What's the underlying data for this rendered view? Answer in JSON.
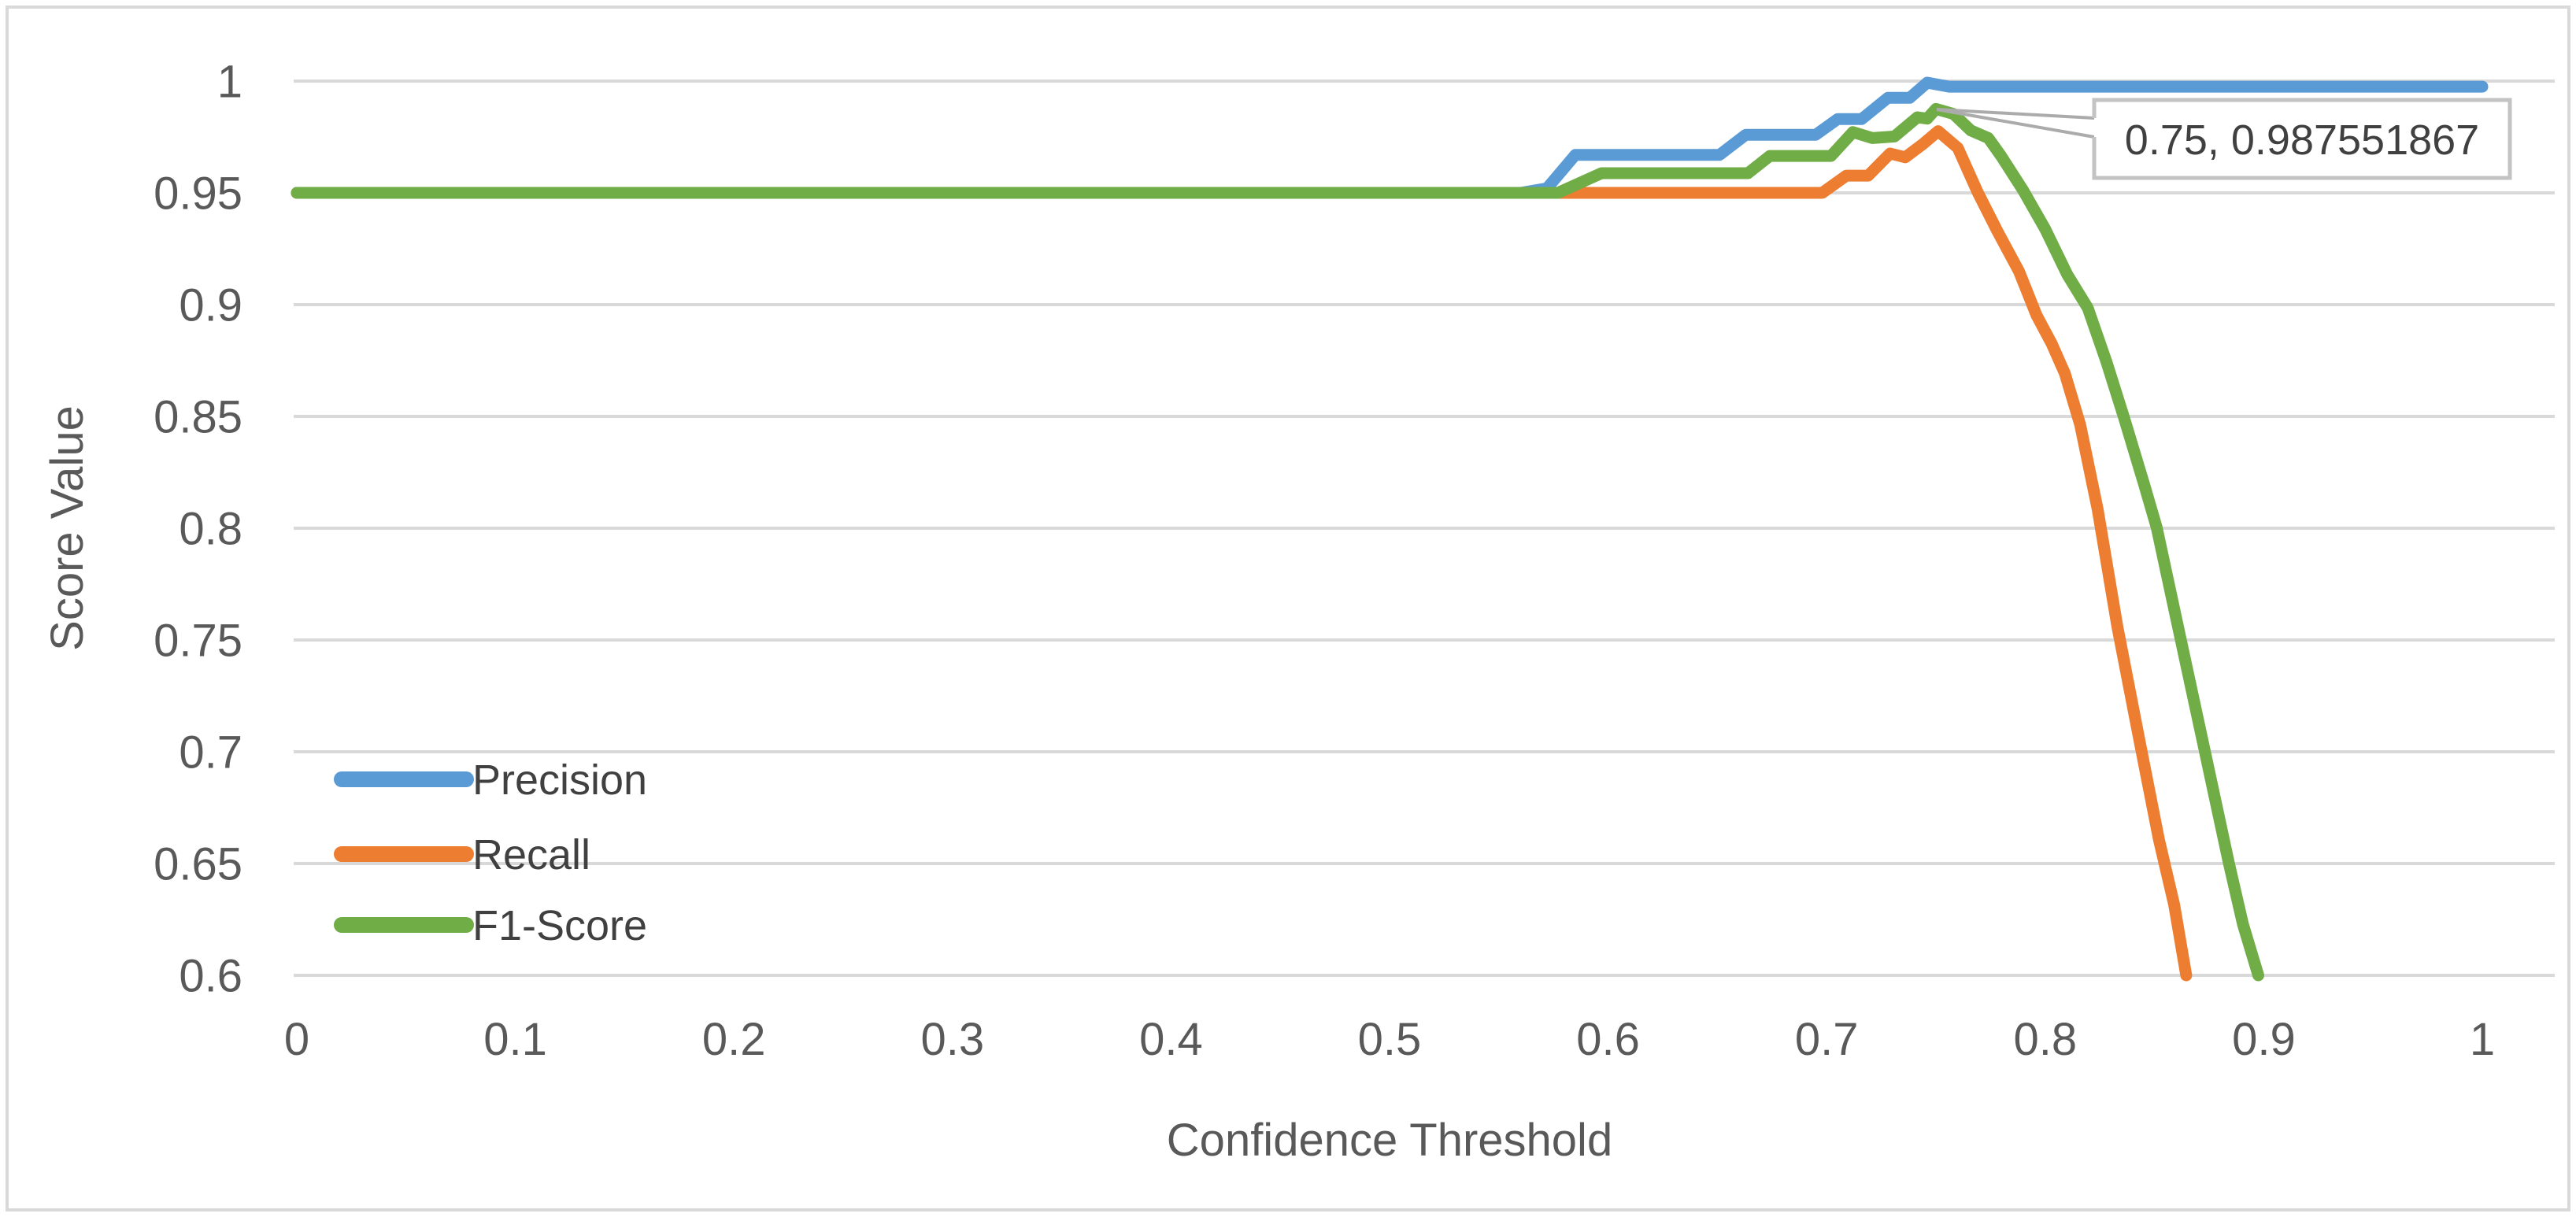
{
  "chart_data": {
    "type": "line",
    "title": "",
    "xlabel": "Confidence Threshold",
    "ylabel": "Score Value",
    "xlim": [
      0,
      1
    ],
    "ylim": [
      0.6,
      1.0
    ],
    "grid": "horizontal-only",
    "grid_color": "#D9D9D9",
    "background_color": "#FFFFFF",
    "border_color": "#D9D9D9",
    "axis_text_color": "#595959",
    "legend_position": "inside-left",
    "xticks": [
      {
        "value": 0,
        "label": "0"
      },
      {
        "value": 0.1,
        "label": "0.1"
      },
      {
        "value": 0.2,
        "label": "0.2"
      },
      {
        "value": 0.3,
        "label": "0.3"
      },
      {
        "value": 0.4,
        "label": "0.4"
      },
      {
        "value": 0.5,
        "label": "0.5"
      },
      {
        "value": 0.6,
        "label": "0.6"
      },
      {
        "value": 0.7,
        "label": "0.7"
      },
      {
        "value": 0.8,
        "label": "0.8"
      },
      {
        "value": 0.9,
        "label": "0.9"
      },
      {
        "value": 1,
        "label": "1"
      }
    ],
    "yticks": [
      {
        "value": 1,
        "label": "1"
      },
      {
        "value": 0.95,
        "label": "0.95"
      },
      {
        "value": 0.9,
        "label": "0.9"
      },
      {
        "value": 0.85,
        "label": "0.85"
      },
      {
        "value": 0.8,
        "label": "0.8"
      },
      {
        "value": 0.75,
        "label": "0.75"
      },
      {
        "value": 0.7,
        "label": "0.7"
      },
      {
        "value": 0.65,
        "label": "0.65"
      },
      {
        "value": 0.6,
        "label": "0.6"
      }
    ],
    "series": [
      {
        "name": "Precision",
        "color": "#5B9BD5",
        "points": [
          [
            0,
            0.95
          ],
          [
            0.56,
            0.95
          ],
          [
            0.572,
            0.952
          ],
          [
            0.585,
            0.967
          ],
          [
            0.651,
            0.967
          ],
          [
            0.663,
            0.976
          ],
          [
            0.695,
            0.976
          ],
          [
            0.705,
            0.983
          ],
          [
            0.716,
            0.983
          ],
          [
            0.728,
            0.9925
          ],
          [
            0.738,
            0.9925
          ],
          [
            0.746,
            0.9993
          ],
          [
            0.756,
            0.9975
          ],
          [
            1.0,
            0.9975
          ]
        ]
      },
      {
        "name": "Recall",
        "color": "#ED7D31",
        "points": [
          [
            0,
            0.95
          ],
          [
            0.698,
            0.95
          ],
          [
            0.709,
            0.9577
          ],
          [
            0.719,
            0.9577
          ],
          [
            0.729,
            0.9676
          ],
          [
            0.736,
            0.9659
          ],
          [
            0.744,
            0.9718
          ],
          [
            0.751,
            0.9776
          ],
          [
            0.76,
            0.9701
          ],
          [
            0.769,
            0.9505
          ],
          [
            0.778,
            0.9331
          ],
          [
            0.788,
            0.9149
          ],
          [
            0.796,
            0.8953
          ],
          [
            0.803,
            0.8825
          ],
          [
            0.809,
            0.8692
          ],
          [
            0.816,
            0.8463
          ],
          [
            0.824,
            0.8085
          ],
          [
            0.833,
            0.7561
          ],
          [
            0.843,
            0.7056
          ],
          [
            0.852,
            0.6608
          ],
          [
            0.859,
            0.6316
          ],
          [
            0.8645,
            0.6
          ]
        ]
      },
      {
        "name": "F1-Score",
        "color": "#70AD47",
        "points": [
          [
            0,
            0.95
          ],
          [
            0.577,
            0.95
          ],
          [
            0.597,
            0.9588
          ],
          [
            0.664,
            0.9588
          ],
          [
            0.674,
            0.9665
          ],
          [
            0.702,
            0.9665
          ],
          [
            0.712,
            0.9772
          ],
          [
            0.721,
            0.9745
          ],
          [
            0.731,
            0.9752
          ],
          [
            0.7415,
            0.9838
          ],
          [
            0.746,
            0.9832
          ],
          [
            0.75,
            0.987551867
          ],
          [
            0.758,
            0.9853
          ],
          [
            0.766,
            0.9779
          ],
          [
            0.774,
            0.9745
          ],
          [
            0.78,
            0.9662
          ],
          [
            0.79,
            0.951
          ],
          [
            0.8,
            0.9338
          ],
          [
            0.81,
            0.9136
          ],
          [
            0.8195,
            0.8985
          ],
          [
            0.828,
            0.8745
          ],
          [
            0.836,
            0.8497
          ],
          [
            0.845,
            0.8205
          ],
          [
            0.851,
            0.8003
          ],
          [
            0.862,
            0.7503
          ],
          [
            0.873,
            0.7005
          ],
          [
            0.884,
            0.6503
          ],
          [
            0.8905,
            0.6228
          ],
          [
            0.8975,
            0.6
          ]
        ]
      }
    ],
    "annotation": {
      "label": "0.75, 0.987551867",
      "x": 0.75,
      "y": 0.987551867,
      "series": "F1-Score"
    }
  }
}
